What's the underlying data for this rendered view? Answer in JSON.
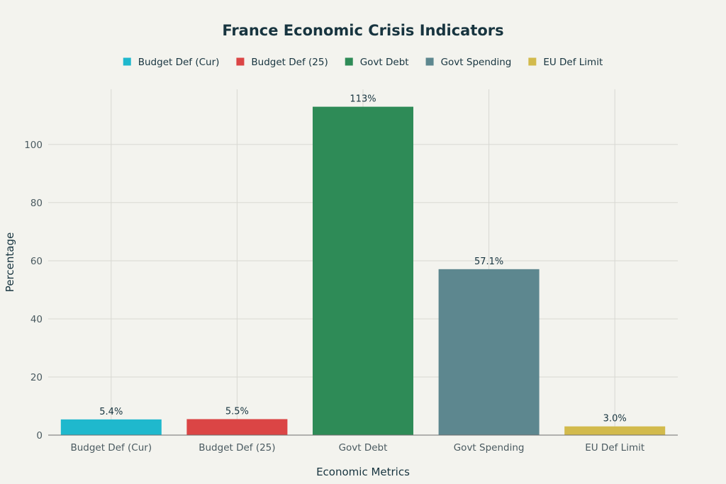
{
  "chart_data": {
    "type": "bar",
    "title": "France Economic Crisis Indicators",
    "xlabel": "Economic Metrics",
    "ylabel": "Percentage",
    "categories": [
      "Budget Def (Cur)",
      "Budget Def (25)",
      "Govt Debt",
      "Govt Spending",
      "EU Def Limit"
    ],
    "values": [
      5.4,
      5.5,
      113,
      57.1,
      3.0
    ],
    "value_labels": [
      "5.4%",
      "5.5%",
      "113%",
      "57.1%",
      "3.0%"
    ],
    "colors": [
      "#1fb8cd",
      "#db4545",
      "#2e8b57",
      "#5d878f",
      "#d2ba4c"
    ],
    "legend": [
      "Budget Def (Cur)",
      "Budget Def (25)",
      "Govt Debt",
      "Govt Spending",
      "EU Def Limit"
    ],
    "legend_position": "top-center",
    "ylim": [
      0,
      119
    ],
    "yticks": [
      0,
      20,
      40,
      60,
      80,
      100
    ],
    "grid": true
  }
}
